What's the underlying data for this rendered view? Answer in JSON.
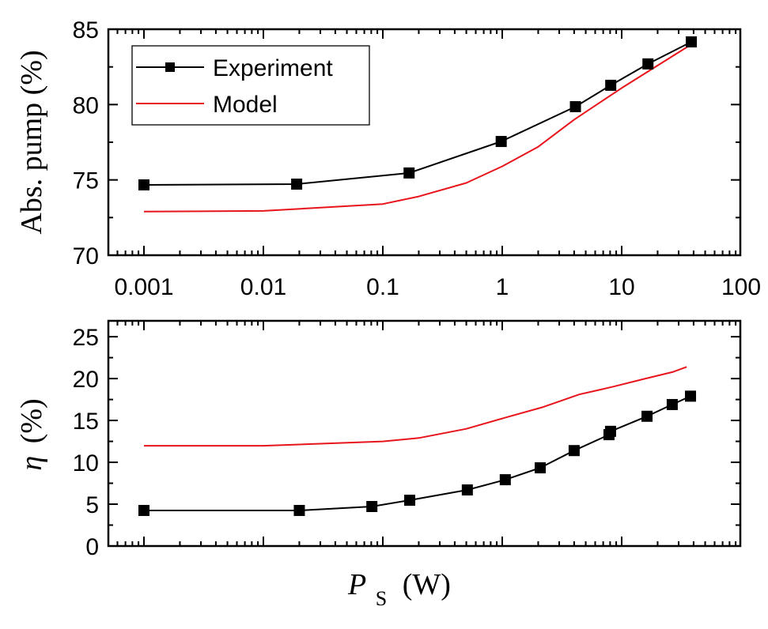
{
  "chart_data": [
    {
      "type": "line",
      "id": "top",
      "title": "",
      "xlabel": "",
      "ylabel": "Abs. pump (%)",
      "xscale": "log",
      "xlim": [
        0.0005,
        100
      ],
      "ylim": [
        70,
        85
      ],
      "xticks": [
        0.001,
        0.01,
        0.1,
        1,
        10,
        100
      ],
      "xtick_labels": [
        "0.001",
        "0.01",
        "0.1",
        "1",
        "10",
        "100"
      ],
      "yticks": [
        70,
        75,
        80,
        85
      ],
      "ytick_labels": [
        "70",
        "75",
        "80",
        "85"
      ],
      "grid": false,
      "legend": {
        "placement": "top-left",
        "entries": [
          {
            "label": "Experiment",
            "style": "line-with-square-markers",
            "color": "#000000"
          },
          {
            "label": "Model",
            "style": "line",
            "color": "#e8141b"
          }
        ]
      },
      "series": [
        {
          "name": "Experiment",
          "color": "#000000",
          "marker": "square",
          "x": [
            0.001,
            0.019,
            0.166,
            0.98,
            4.1,
            8.1,
            16.6,
            38.3
          ],
          "y": [
            74.67,
            74.72,
            75.46,
            77.55,
            79.86,
            81.28,
            82.7,
            84.16
          ]
        },
        {
          "name": "Model",
          "color": "#e8141b",
          "marker": "none",
          "x": [
            0.001,
            0.01,
            0.1,
            0.2,
            0.5,
            1,
            2,
            4,
            10,
            38.3
          ],
          "y": [
            72.9,
            72.94,
            73.4,
            73.9,
            74.8,
            75.9,
            77.2,
            79.0,
            81.1,
            84.0
          ]
        }
      ]
    },
    {
      "type": "line",
      "id": "bottom",
      "title": "",
      "xlabel": "P_S (W)",
      "xlabel_main": "P",
      "xlabel_sub": "S",
      "xlabel_unit": "(W)",
      "ylabel": "η (%)",
      "ylabel_symbol": "η",
      "ylabel_unit": "(%)",
      "xscale": "log",
      "xlim": [
        0.0005,
        100
      ],
      "ylim": [
        0,
        26.9
      ],
      "xticks": [
        0.001,
        0.01,
        0.1,
        1,
        10,
        100
      ],
      "xtick_labels": [],
      "yticks": [
        0,
        5,
        10,
        15,
        20,
        25
      ],
      "ytick_labels": [
        "0",
        "5",
        "10",
        "15",
        "20",
        "25"
      ],
      "grid": false,
      "series": [
        {
          "name": "Experiment",
          "color": "#000000",
          "marker": "square",
          "x": [
            0.001,
            0.02,
            0.081,
            0.168,
            0.51,
            1.06,
            2.08,
            4.0,
            7.83,
            8.07,
            16.3,
            26.5,
            37.7
          ],
          "y": [
            4.25,
            4.25,
            4.72,
            5.47,
            6.7,
            7.92,
            9.34,
            11.4,
            13.3,
            13.7,
            15.5,
            16.9,
            17.9
          ]
        },
        {
          "name": "Model",
          "color": "#e8141b",
          "marker": "none",
          "x": [
            0.001,
            0.01,
            0.1,
            0.2,
            0.5,
            1.1,
            2.2,
            4.4,
            8.3,
            15.8,
            27,
            35
          ],
          "y": [
            11.98,
            11.98,
            12.5,
            12.9,
            14.0,
            15.4,
            16.6,
            18.1,
            19.0,
            20.0,
            20.8,
            21.4
          ]
        }
      ]
    }
  ]
}
